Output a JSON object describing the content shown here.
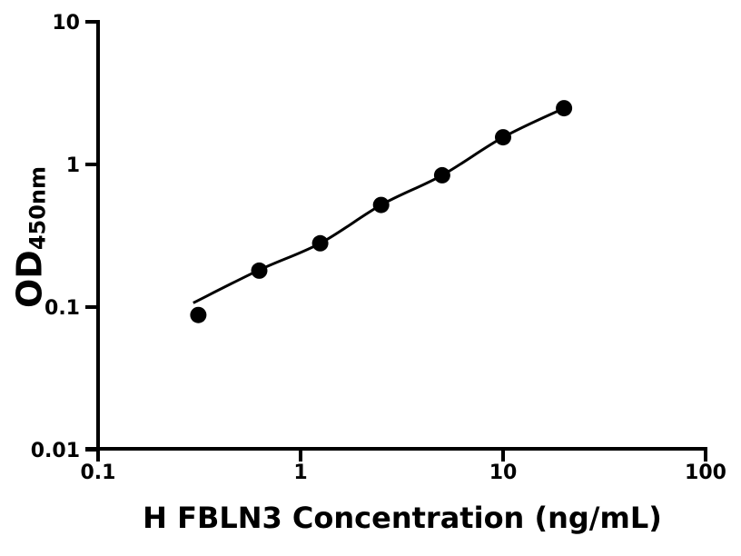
{
  "chart_data": {
    "type": "scatter",
    "title": "",
    "xlabel": "H FBLN3 Concentration (ng/mL)",
    "ylabel_main": "OD",
    "ylabel_sub": "450nm",
    "xscale": "log",
    "yscale": "log",
    "xlim": [
      0.1,
      100
    ],
    "ylim": [
      0.01,
      10
    ],
    "grid": false,
    "legend": null,
    "xticks": [
      {
        "value": 0.1,
        "label": "0.1"
      },
      {
        "value": 1,
        "label": "1"
      },
      {
        "value": 10,
        "label": "10"
      },
      {
        "value": 100,
        "label": "100"
      }
    ],
    "yticks": [
      {
        "value": 0.01,
        "label": "0.01"
      },
      {
        "value": 0.1,
        "label": "0.1"
      },
      {
        "value": 1,
        "label": "1"
      },
      {
        "value": 10,
        "label": "10"
      }
    ],
    "points": [
      {
        "x": 0.3125,
        "y": 0.088
      },
      {
        "x": 0.625,
        "y": 0.18
      },
      {
        "x": 1.25,
        "y": 0.28
      },
      {
        "x": 2.5,
        "y": 0.52
      },
      {
        "x": 5,
        "y": 0.84
      },
      {
        "x": 10,
        "y": 1.55
      },
      {
        "x": 20,
        "y": 2.48
      }
    ],
    "fit_curve": [
      {
        "x": 0.295,
        "y": 0.107
      },
      {
        "x": 0.625,
        "y": 0.182
      },
      {
        "x": 1.25,
        "y": 0.28
      },
      {
        "x": 2.5,
        "y": 0.52
      },
      {
        "x": 5,
        "y": 0.84
      },
      {
        "x": 10,
        "y": 1.55
      },
      {
        "x": 20,
        "y": 2.48
      }
    ],
    "marker_color": "#000000",
    "line_color": "#000000",
    "axis_color": "#000000",
    "background": "#ffffff"
  }
}
